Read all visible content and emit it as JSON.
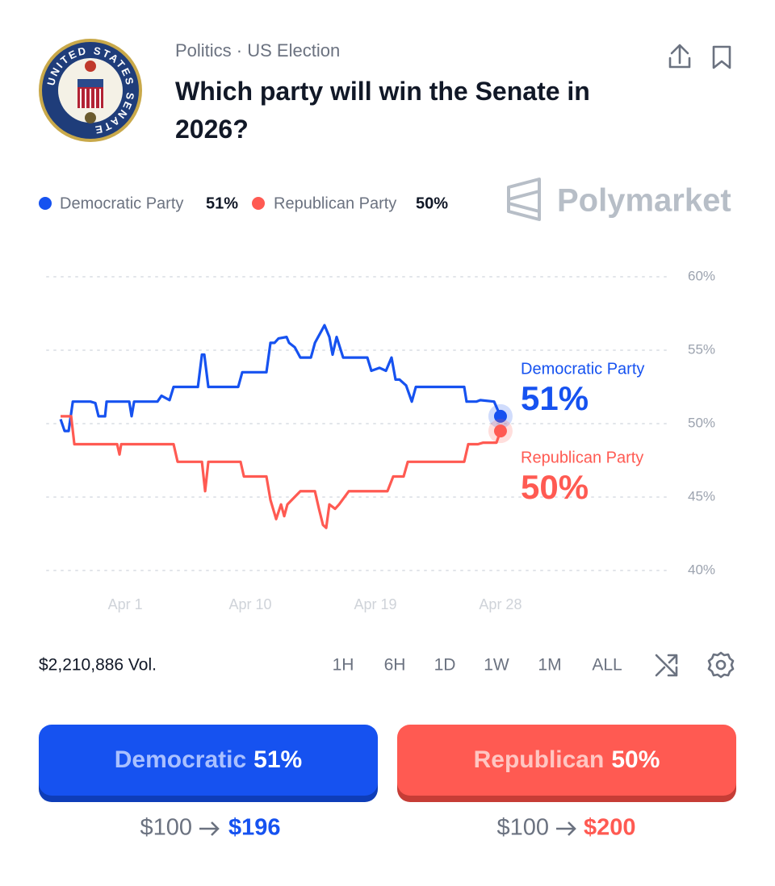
{
  "header": {
    "category": "Politics · US Election",
    "title": "Which party will win the Senate in 2026?",
    "seal_text": "UNITED STATES SENATE"
  },
  "brand": "Polymarket",
  "chart_data": {
    "type": "line",
    "xlim": [
      -4.64,
      40.2
    ],
    "xticks": [
      {
        "value": 1,
        "label": "Apr 1"
      },
      {
        "value": 10,
        "label": "Apr 10"
      },
      {
        "value": 19,
        "label": "Apr 19"
      },
      {
        "value": 28,
        "label": "Apr 28"
      }
    ],
    "ylim": [
      40,
      60
    ],
    "yticks": [
      {
        "value": 40,
        "label": "40%"
      },
      {
        "value": 45,
        "label": "45%"
      },
      {
        "value": 50,
        "label": "50%"
      },
      {
        "value": 55,
        "label": "55%"
      },
      {
        "value": 60,
        "label": "60%"
      }
    ],
    "grid": true,
    "series": [
      {
        "name": "Democratic Party",
        "color": "#1652f0",
        "current_label": "51%",
        "x": [
          -3.65,
          -3.36,
          -3.07,
          -2.77,
          -1.5,
          -1.15,
          -0.92,
          -0.45,
          -0.34,
          1.29,
          1.46,
          1.64,
          3.32,
          3.61,
          4.19,
          4.48,
          6.23,
          6.52,
          6.69,
          6.98,
          9.13,
          9.42,
          11.16,
          11.45,
          11.74,
          12.03,
          12.61,
          12.79,
          13.2,
          13.6,
          14.36,
          14.65,
          15.11,
          15.34,
          15.69,
          15.92,
          16.21,
          16.68,
          18.42,
          18.71,
          19.29,
          19.76,
          20.16,
          20.45,
          20.74,
          21.21,
          21.62,
          21.91,
          25.39,
          25.56,
          26.26,
          26.55,
          27.54,
          28.0
        ],
        "values": [
          50.3,
          49.5,
          49.5,
          51.5,
          51.5,
          51.4,
          50.5,
          50.5,
          51.5,
          51.5,
          50.5,
          51.5,
          51.5,
          51.9,
          51.6,
          52.5,
          52.5,
          54.7,
          54.7,
          52.5,
          52.5,
          53.5,
          53.5,
          55.5,
          55.5,
          55.8,
          55.9,
          55.5,
          55.2,
          54.5,
          54.5,
          55.5,
          56.3,
          56.7,
          55.9,
          54.7,
          55.9,
          54.5,
          54.5,
          53.6,
          53.8,
          53.6,
          54.5,
          53.0,
          53.0,
          52.6,
          51.5,
          52.5,
          52.5,
          51.5,
          51.5,
          51.6,
          51.5,
          50.5
        ]
      },
      {
        "name": "Republican Party",
        "color": "#ff5a52",
        "current_label": "50%",
        "x": [
          -3.65,
          -2.89,
          -2.66,
          0.42,
          0.59,
          0.71,
          4.48,
          4.77,
          6.52,
          6.75,
          6.98,
          9.3,
          9.54,
          11.16,
          11.45,
          11.86,
          12.21,
          12.44,
          12.67,
          13.6,
          14.65,
          14.94,
          15.23,
          15.46,
          15.69,
          16.1,
          16.39,
          17.09,
          19.87,
          20.28,
          21.03,
          21.33,
          25.39,
          25.68,
          26.38,
          26.73,
          27.71,
          28.0
        ],
        "values": [
          50.5,
          50.5,
          48.6,
          48.6,
          47.9,
          48.6,
          48.6,
          47.4,
          47.4,
          45.4,
          47.4,
          47.4,
          46.4,
          46.4,
          44.8,
          43.5,
          44.5,
          43.7,
          44.5,
          45.4,
          45.4,
          44.2,
          43.1,
          42.9,
          44.5,
          44.2,
          44.5,
          45.4,
          45.4,
          46.4,
          46.4,
          47.4,
          47.4,
          48.6,
          48.6,
          48.7,
          48.7,
          49.5
        ]
      }
    ]
  },
  "volume": "$2,210,886 Vol.",
  "time_ranges": [
    "1H",
    "6H",
    "1D",
    "1W",
    "1M",
    "ALL"
  ],
  "buttons": [
    {
      "label": "Democratic",
      "stake": "$100",
      "payout": "$196"
    },
    {
      "label": "Republican",
      "stake": "$100",
      "payout": "$200"
    }
  ]
}
